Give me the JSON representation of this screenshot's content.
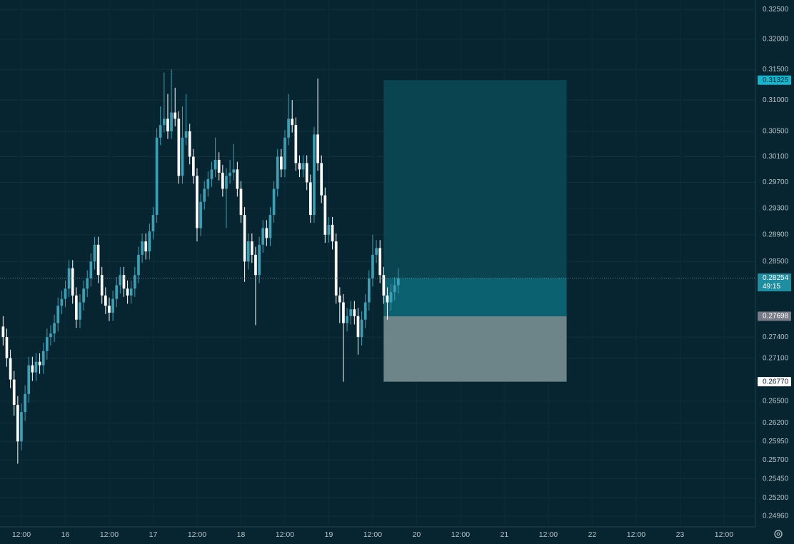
{
  "chart_data": {
    "type": "candlestick",
    "log_scale": true,
    "grid": true,
    "up_color": "#3aa0b5",
    "down_color": "#ffffff",
    "x": [
      7,
      8,
      9,
      10,
      11,
      12,
      13,
      14,
      15,
      16,
      17,
      18,
      19,
      20,
      21,
      22,
      23,
      24,
      25,
      26,
      27,
      28,
      29,
      30,
      31,
      32,
      33,
      34,
      35,
      36,
      37,
      38,
      39,
      40,
      41,
      42,
      43,
      44,
      45,
      46,
      47,
      48,
      49,
      50,
      51,
      52,
      53,
      54,
      55,
      56,
      57,
      58,
      59,
      60,
      61,
      62,
      63,
      64,
      65,
      66,
      67,
      68,
      69,
      70,
      71,
      72,
      73,
      74,
      75,
      76,
      77,
      78,
      79,
      80,
      81,
      82,
      83,
      84,
      85,
      86,
      87,
      88,
      89,
      90,
      91,
      92,
      93,
      94,
      95,
      96,
      97,
      98,
      99,
      100,
      101,
      102,
      103,
      104,
      105,
      106,
      107,
      108,
      109,
      110,
      111,
      112,
      113,
      114,
      115
    ],
    "open": [
      0.2755,
      0.274,
      0.271,
      0.268,
      0.2645,
      0.2595,
      0.2635,
      0.266,
      0.27,
      0.269,
      0.2705,
      0.27,
      0.272,
      0.274,
      0.2745,
      0.276,
      0.2785,
      0.2795,
      0.281,
      0.284,
      0.28,
      0.2765,
      0.279,
      0.281,
      0.2825,
      0.285,
      0.2875,
      0.283,
      0.28,
      0.2785,
      0.2775,
      0.2795,
      0.2815,
      0.283,
      0.281,
      0.28,
      0.281,
      0.283,
      0.286,
      0.288,
      0.2865,
      0.2895,
      0.292,
      0.304,
      0.306,
      0.307,
      0.305,
      0.308,
      0.307,
      0.298,
      0.304,
      0.305,
      0.301,
      0.298,
      0.29,
      0.294,
      0.296,
      0.2975,
      0.299,
      0.3005,
      0.2985,
      0.296,
      0.298,
      0.2985,
      0.299,
      0.296,
      0.292,
      0.285,
      0.288,
      0.286,
      0.283,
      0.2875,
      0.29,
      0.2885,
      0.292,
      0.296,
      0.301,
      0.299,
      0.304,
      0.307,
      0.306,
      0.3,
      0.299,
      0.3,
      0.297,
      0.292,
      0.3045,
      0.3,
      0.295,
      0.289,
      0.2905,
      0.288,
      0.28,
      0.279,
      0.276,
      0.277,
      0.278,
      0.277,
      0.274,
      0.2765,
      0.279,
      0.2825,
      0.286,
      0.287,
      0.283,
      0.28,
      0.279,
      0.2805,
      0.2815
    ],
    "high": [
      0.277,
      0.2752,
      0.2722,
      0.2692,
      0.2657,
      0.2647,
      0.2672,
      0.2712,
      0.2712,
      0.2717,
      0.2717,
      0.2732,
      0.2752,
      0.2757,
      0.2772,
      0.2797,
      0.2807,
      0.2822,
      0.2852,
      0.2852,
      0.2812,
      0.2802,
      0.2822,
      0.2837,
      0.2862,
      0.2887,
      0.2887,
      0.2842,
      0.2812,
      0.2797,
      0.2807,
      0.2827,
      0.2842,
      0.2842,
      0.2822,
      0.2822,
      0.2842,
      0.2872,
      0.2892,
      0.2892,
      0.2907,
      0.2932,
      0.3055,
      0.309,
      0.3145,
      0.311,
      0.315,
      0.312,
      0.3082,
      0.309,
      0.311,
      0.3062,
      0.3022,
      0.2992,
      0.2952,
      0.2972,
      0.2987,
      0.3002,
      0.304,
      0.3017,
      0.2997,
      0.2992,
      0.3005,
      0.303,
      0.3002,
      0.2972,
      0.2932,
      0.2892,
      0.2892,
      0.2872,
      0.2887,
      0.2912,
      0.2912,
      0.2932,
      0.2972,
      0.3022,
      0.3022,
      0.3052,
      0.311,
      0.31,
      0.3072,
      0.3012,
      0.3012,
      0.3012,
      0.2982,
      0.3057,
      0.3135,
      0.3012,
      0.2962,
      0.2917,
      0.2917,
      0.2892,
      0.2812,
      0.2802,
      0.2782,
      0.2792,
      0.2792,
      0.2782,
      0.2777,
      0.2802,
      0.2837,
      0.289,
      0.2882,
      0.2882,
      0.2842,
      0.2812,
      0.2817,
      0.2827,
      0.284
    ],
    "low": [
      0.2728,
      0.2698,
      0.2668,
      0.263,
      0.2565,
      0.2583,
      0.2623,
      0.2648,
      0.2678,
      0.2678,
      0.2688,
      0.2688,
      0.2708,
      0.2728,
      0.2733,
      0.2748,
      0.2773,
      0.2783,
      0.2798,
      0.2788,
      0.2753,
      0.2753,
      0.2778,
      0.2798,
      0.2813,
      0.2838,
      0.2818,
      0.2788,
      0.2773,
      0.2763,
      0.2763,
      0.2783,
      0.2803,
      0.2798,
      0.2788,
      0.2788,
      0.2798,
      0.2818,
      0.2848,
      0.2853,
      0.2853,
      0.2883,
      0.2908,
      0.3028,
      0.3048,
      0.3038,
      0.3038,
      0.3058,
      0.2968,
      0.2968,
      0.3028,
      0.2998,
      0.2968,
      0.288,
      0.2888,
      0.2928,
      0.2948,
      0.2963,
      0.2978,
      0.2973,
      0.2948,
      0.29,
      0.2968,
      0.2973,
      0.2948,
      0.2908,
      0.282,
      0.2838,
      0.2848,
      0.2757,
      0.2818,
      0.2863,
      0.2873,
      0.2873,
      0.2908,
      0.2948,
      0.2978,
      0.2978,
      0.3028,
      0.3048,
      0.2988,
      0.2978,
      0.2978,
      0.2958,
      0.2908,
      0.2908,
      0.2988,
      0.2938,
      0.2878,
      0.2878,
      0.2868,
      0.2788,
      0.276,
      0.2677,
      0.2748,
      0.2758,
      0.2758,
      0.2715,
      0.2728,
      0.2753,
      0.2778,
      0.2813,
      0.2848,
      0.2818,
      0.2788,
      0.2765,
      0.2778,
      0.2793,
      0.2803
    ],
    "close": [
      0.274,
      0.271,
      0.268,
      0.2645,
      0.2595,
      0.2635,
      0.266,
      0.27,
      0.269,
      0.2705,
      0.27,
      0.272,
      0.274,
      0.2745,
      0.276,
      0.2785,
      0.2795,
      0.281,
      0.284,
      0.28,
      0.2765,
      0.279,
      0.281,
      0.2825,
      0.285,
      0.2875,
      0.283,
      0.28,
      0.2785,
      0.2775,
      0.2795,
      0.2815,
      0.283,
      0.281,
      0.28,
      0.281,
      0.283,
      0.286,
      0.288,
      0.2865,
      0.2895,
      0.292,
      0.304,
      0.306,
      0.307,
      0.305,
      0.308,
      0.307,
      0.298,
      0.304,
      0.305,
      0.301,
      0.298,
      0.29,
      0.294,
      0.296,
      0.2975,
      0.299,
      0.3005,
      0.2985,
      0.296,
      0.298,
      0.2985,
      0.299,
      0.296,
      0.292,
      0.285,
      0.288,
      0.286,
      0.283,
      0.2875,
      0.29,
      0.2885,
      0.292,
      0.296,
      0.301,
      0.299,
      0.304,
      0.307,
      0.306,
      0.3,
      0.299,
      0.3,
      0.297,
      0.292,
      0.3045,
      0.3,
      0.295,
      0.289,
      0.2905,
      0.288,
      0.28,
      0.279,
      0.276,
      0.277,
      0.278,
      0.277,
      0.274,
      0.2765,
      0.279,
      0.2825,
      0.286,
      0.287,
      0.283,
      0.28,
      0.279,
      0.2805,
      0.2815,
      0.28254
    ],
    "xlim": [
      6.15,
      212.6
    ],
    "ylim": [
      0.2482,
      0.3266
    ],
    "xticks": [
      {
        "value": 12,
        "label": "12:00"
      },
      {
        "value": 24,
        "label": "16"
      },
      {
        "value": 36,
        "label": "12:00"
      },
      {
        "value": 48,
        "label": "17"
      },
      {
        "value": 60,
        "label": "12:00"
      },
      {
        "value": 72,
        "label": "18"
      },
      {
        "value": 84,
        "label": "12:00"
      },
      {
        "value": 96,
        "label": "19"
      },
      {
        "value": 108,
        "label": "12:00"
      },
      {
        "value": 120,
        "label": "20"
      },
      {
        "value": 132,
        "label": "12:00"
      },
      {
        "value": 144,
        "label": "21"
      },
      {
        "value": 156,
        "label": "12:00"
      },
      {
        "value": 168,
        "label": "22"
      },
      {
        "value": 180,
        "label": "12:00"
      },
      {
        "value": 192,
        "label": "23"
      },
      {
        "value": 204,
        "label": "12:00"
      }
    ],
    "yticks": [
      {
        "value": 0.325,
        "label": "0.32500"
      },
      {
        "value": 0.32,
        "label": "0.32000"
      },
      {
        "value": 0.315,
        "label": "0.31500"
      },
      {
        "value": 0.31,
        "label": "0.31000"
      },
      {
        "value": 0.305,
        "label": "0.30500"
      },
      {
        "value": 0.301,
        "label": "0.30100"
      },
      {
        "value": 0.297,
        "label": "0.29700"
      },
      {
        "value": 0.293,
        "label": "0.29300"
      },
      {
        "value": 0.289,
        "label": "0.28900"
      },
      {
        "value": 0.285,
        "label": "0.28500"
      },
      {
        "value": 0.274,
        "label": "0.27400"
      },
      {
        "value": 0.271,
        "label": "0.27100"
      },
      {
        "value": 0.265,
        "label": "0.26500"
      },
      {
        "value": 0.262,
        "label": "0.26200"
      },
      {
        "value": 0.2595,
        "label": "0.25950"
      },
      {
        "value": 0.257,
        "label": "0.25700"
      },
      {
        "value": 0.2545,
        "label": "0.25450"
      },
      {
        "value": 0.252,
        "label": "0.25200"
      },
      {
        "value": 0.2496,
        "label": "0.24960"
      }
    ],
    "last_price": {
      "value": 0.28254,
      "label": "0.28254",
      "color": "#1e8ea1"
    },
    "countdown": "49:15",
    "position": {
      "x_start": 111,
      "x_end": 161,
      "target": {
        "value": 0.31325,
        "label": "0.31325",
        "color": "#13b6cf"
      },
      "entry": {
        "value": 0.27698,
        "label": "0.27698",
        "color": "#787b86"
      },
      "stop": {
        "value": 0.2677,
        "label": "0.26770",
        "color": "#ffffff"
      }
    }
  }
}
